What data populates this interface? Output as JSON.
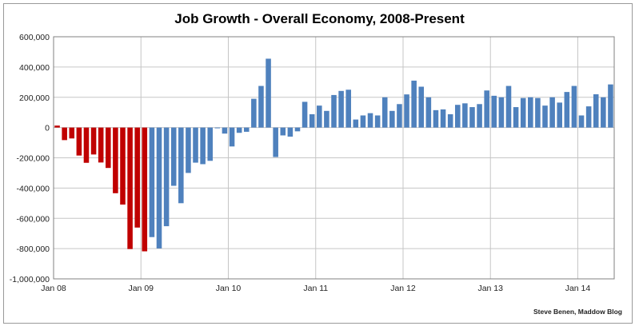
{
  "chart_data": {
    "type": "bar",
    "title": "Job Growth - Overall Economy, 2008-Present",
    "xlabel": "",
    "ylabel": "",
    "credit": "Steve Benen, Maddow Blog",
    "ylim": [
      -1000000,
      600000
    ],
    "y_ticks": [
      600000,
      400000,
      200000,
      0,
      -200000,
      -400000,
      -600000,
      -800000,
      -1000000
    ],
    "y_tick_labels": [
      "600,000",
      "400,000",
      "200,000",
      "0",
      "-200,000",
      "-400,000",
      "-600,000",
      "-800,000",
      "-1,000,000"
    ],
    "x_ticks": [
      {
        "label": "Jan 08",
        "index": 0
      },
      {
        "label": "Jan 09",
        "index": 12
      },
      {
        "label": "Jan 10",
        "index": 24
      },
      {
        "label": "Jan 11",
        "index": 36
      },
      {
        "label": "Jan 12",
        "index": 48
      },
      {
        "label": "Jan 13",
        "index": 60
      },
      {
        "label": "Jan 14",
        "index": 72
      }
    ],
    "grid": true,
    "colors": {
      "red": "#c00000",
      "blue": "#4f81bd"
    },
    "series": [
      {
        "values": [
          13000,
          -83000,
          -72000,
          -185000,
          -233000,
          -178000,
          -231000,
          -267000,
          -434000,
          -509000,
          -803000,
          -661000,
          -818000,
          -724000,
          -799000,
          -652000,
          -385000,
          -500000,
          -300000,
          -232000,
          -242000,
          -220000,
          -5000,
          -40000,
          -125000,
          -35000,
          -28000,
          190000,
          275000,
          455000,
          -195000,
          -52000,
          -60000,
          -25000,
          170000,
          88000,
          145000,
          110000,
          215000,
          242000,
          250000,
          53000,
          80000,
          95000,
          80000,
          200000,
          110000,
          155000,
          219000,
          310000,
          270000,
          200000,
          115000,
          120000,
          88000,
          150000,
          160000,
          135000,
          155000,
          245000,
          210000,
          200000,
          275000,
          135000,
          195000,
          200000,
          195000,
          145000,
          200000,
          165000,
          235000,
          275000,
          80000,
          140000,
          220000,
          200000,
          285000
        ],
        "colors_by_index": {
          "red_until_index": 12
        }
      }
    ]
  }
}
